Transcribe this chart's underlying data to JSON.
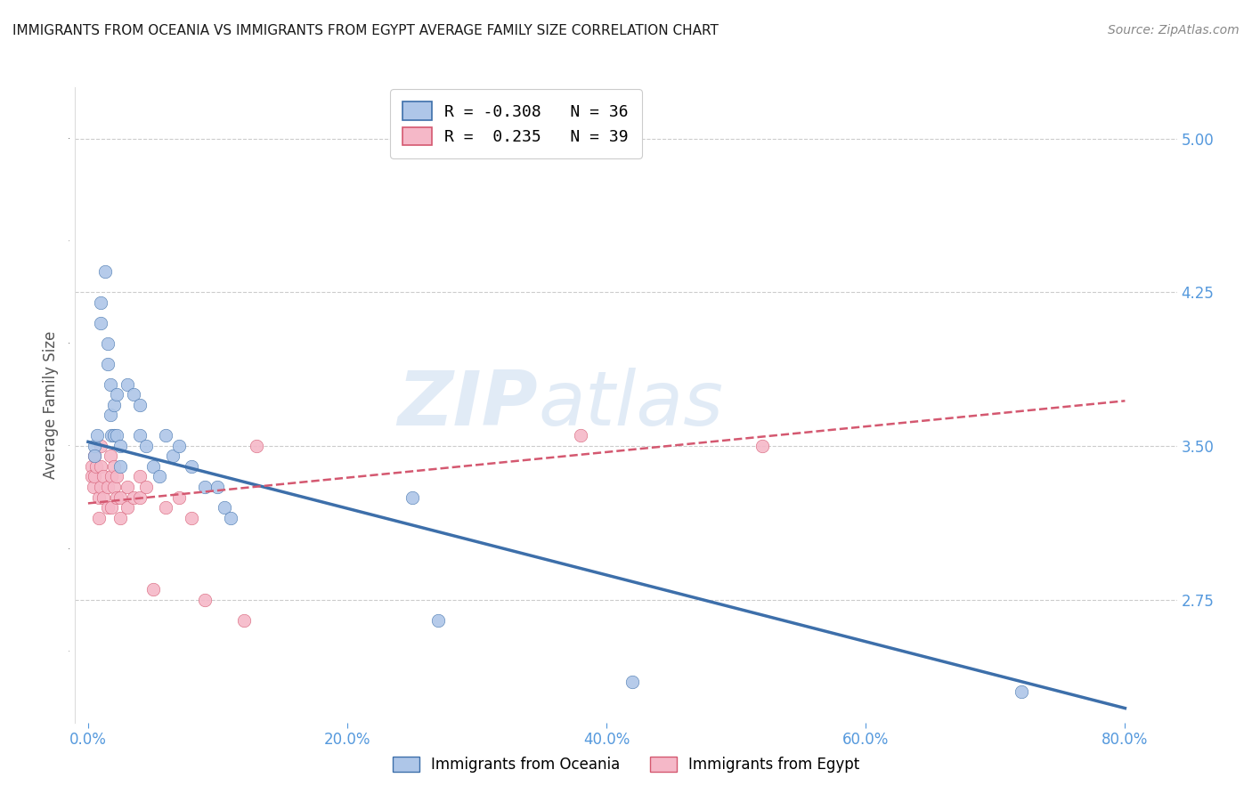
{
  "title": "IMMIGRANTS FROM OCEANIA VS IMMIGRANTS FROM EGYPT AVERAGE FAMILY SIZE CORRELATION CHART",
  "source": "Source: ZipAtlas.com",
  "ylabel": "Average Family Size",
  "xlabel_ticks": [
    "0.0%",
    "20.0%",
    "40.0%",
    "60.0%",
    "80.0%"
  ],
  "xlabel_vals": [
    0.0,
    0.2,
    0.4,
    0.6,
    0.8
  ],
  "yticks": [
    2.75,
    3.5,
    4.25,
    5.0
  ],
  "ylim": [
    2.15,
    5.25
  ],
  "xlim": [
    -0.01,
    0.84
  ],
  "legend_r_oceania": "-0.308",
  "legend_n_oceania": "36",
  "legend_r_egypt": "0.235",
  "legend_n_egypt": "39",
  "legend_label_oceania": "Immigrants from Oceania",
  "legend_label_egypt": "Immigrants from Egypt",
  "color_oceania": "#aec6e8",
  "color_egypt": "#f5b8c8",
  "color_line_oceania": "#3d6faa",
  "color_line_egypt": "#d45870",
  "color_axis": "#5599dd",
  "background": "#ffffff",
  "title_fontsize": 11,
  "watermark_part1": "ZIP",
  "watermark_part2": "atlas",
  "oceania_x": [
    0.005,
    0.005,
    0.007,
    0.01,
    0.01,
    0.013,
    0.015,
    0.015,
    0.017,
    0.017,
    0.018,
    0.02,
    0.02,
    0.022,
    0.022,
    0.025,
    0.025,
    0.03,
    0.035,
    0.04,
    0.04,
    0.045,
    0.05,
    0.055,
    0.06,
    0.065,
    0.07,
    0.08,
    0.09,
    0.1,
    0.105,
    0.11,
    0.25,
    0.27,
    0.42,
    0.72
  ],
  "oceania_y": [
    3.5,
    3.45,
    3.55,
    4.2,
    4.1,
    4.35,
    4.0,
    3.9,
    3.8,
    3.65,
    3.55,
    3.7,
    3.55,
    3.75,
    3.55,
    3.5,
    3.4,
    3.8,
    3.75,
    3.7,
    3.55,
    3.5,
    3.4,
    3.35,
    3.55,
    3.45,
    3.5,
    3.4,
    3.3,
    3.3,
    3.2,
    3.15,
    3.25,
    2.65,
    2.35,
    2.3
  ],
  "egypt_x": [
    0.003,
    0.003,
    0.004,
    0.005,
    0.005,
    0.006,
    0.008,
    0.008,
    0.01,
    0.01,
    0.01,
    0.012,
    0.012,
    0.015,
    0.015,
    0.017,
    0.018,
    0.018,
    0.02,
    0.02,
    0.022,
    0.022,
    0.025,
    0.025,
    0.03,
    0.03,
    0.035,
    0.04,
    0.04,
    0.045,
    0.05,
    0.06,
    0.07,
    0.08,
    0.09,
    0.12,
    0.13,
    0.38,
    0.52
  ],
  "egypt_y": [
    3.4,
    3.35,
    3.3,
    3.45,
    3.35,
    3.4,
    3.25,
    3.15,
    3.5,
    3.4,
    3.3,
    3.35,
    3.25,
    3.3,
    3.2,
    3.45,
    3.35,
    3.2,
    3.4,
    3.3,
    3.35,
    3.25,
    3.25,
    3.15,
    3.3,
    3.2,
    3.25,
    3.35,
    3.25,
    3.3,
    2.8,
    3.2,
    3.25,
    3.15,
    2.75,
    2.65,
    3.5,
    3.55,
    3.5
  ],
  "oceania_trend_x": [
    0.0,
    0.8
  ],
  "oceania_trend_y": [
    3.52,
    2.22
  ],
  "egypt_trend_x": [
    0.0,
    0.8
  ],
  "egypt_trend_y": [
    3.22,
    3.72
  ]
}
